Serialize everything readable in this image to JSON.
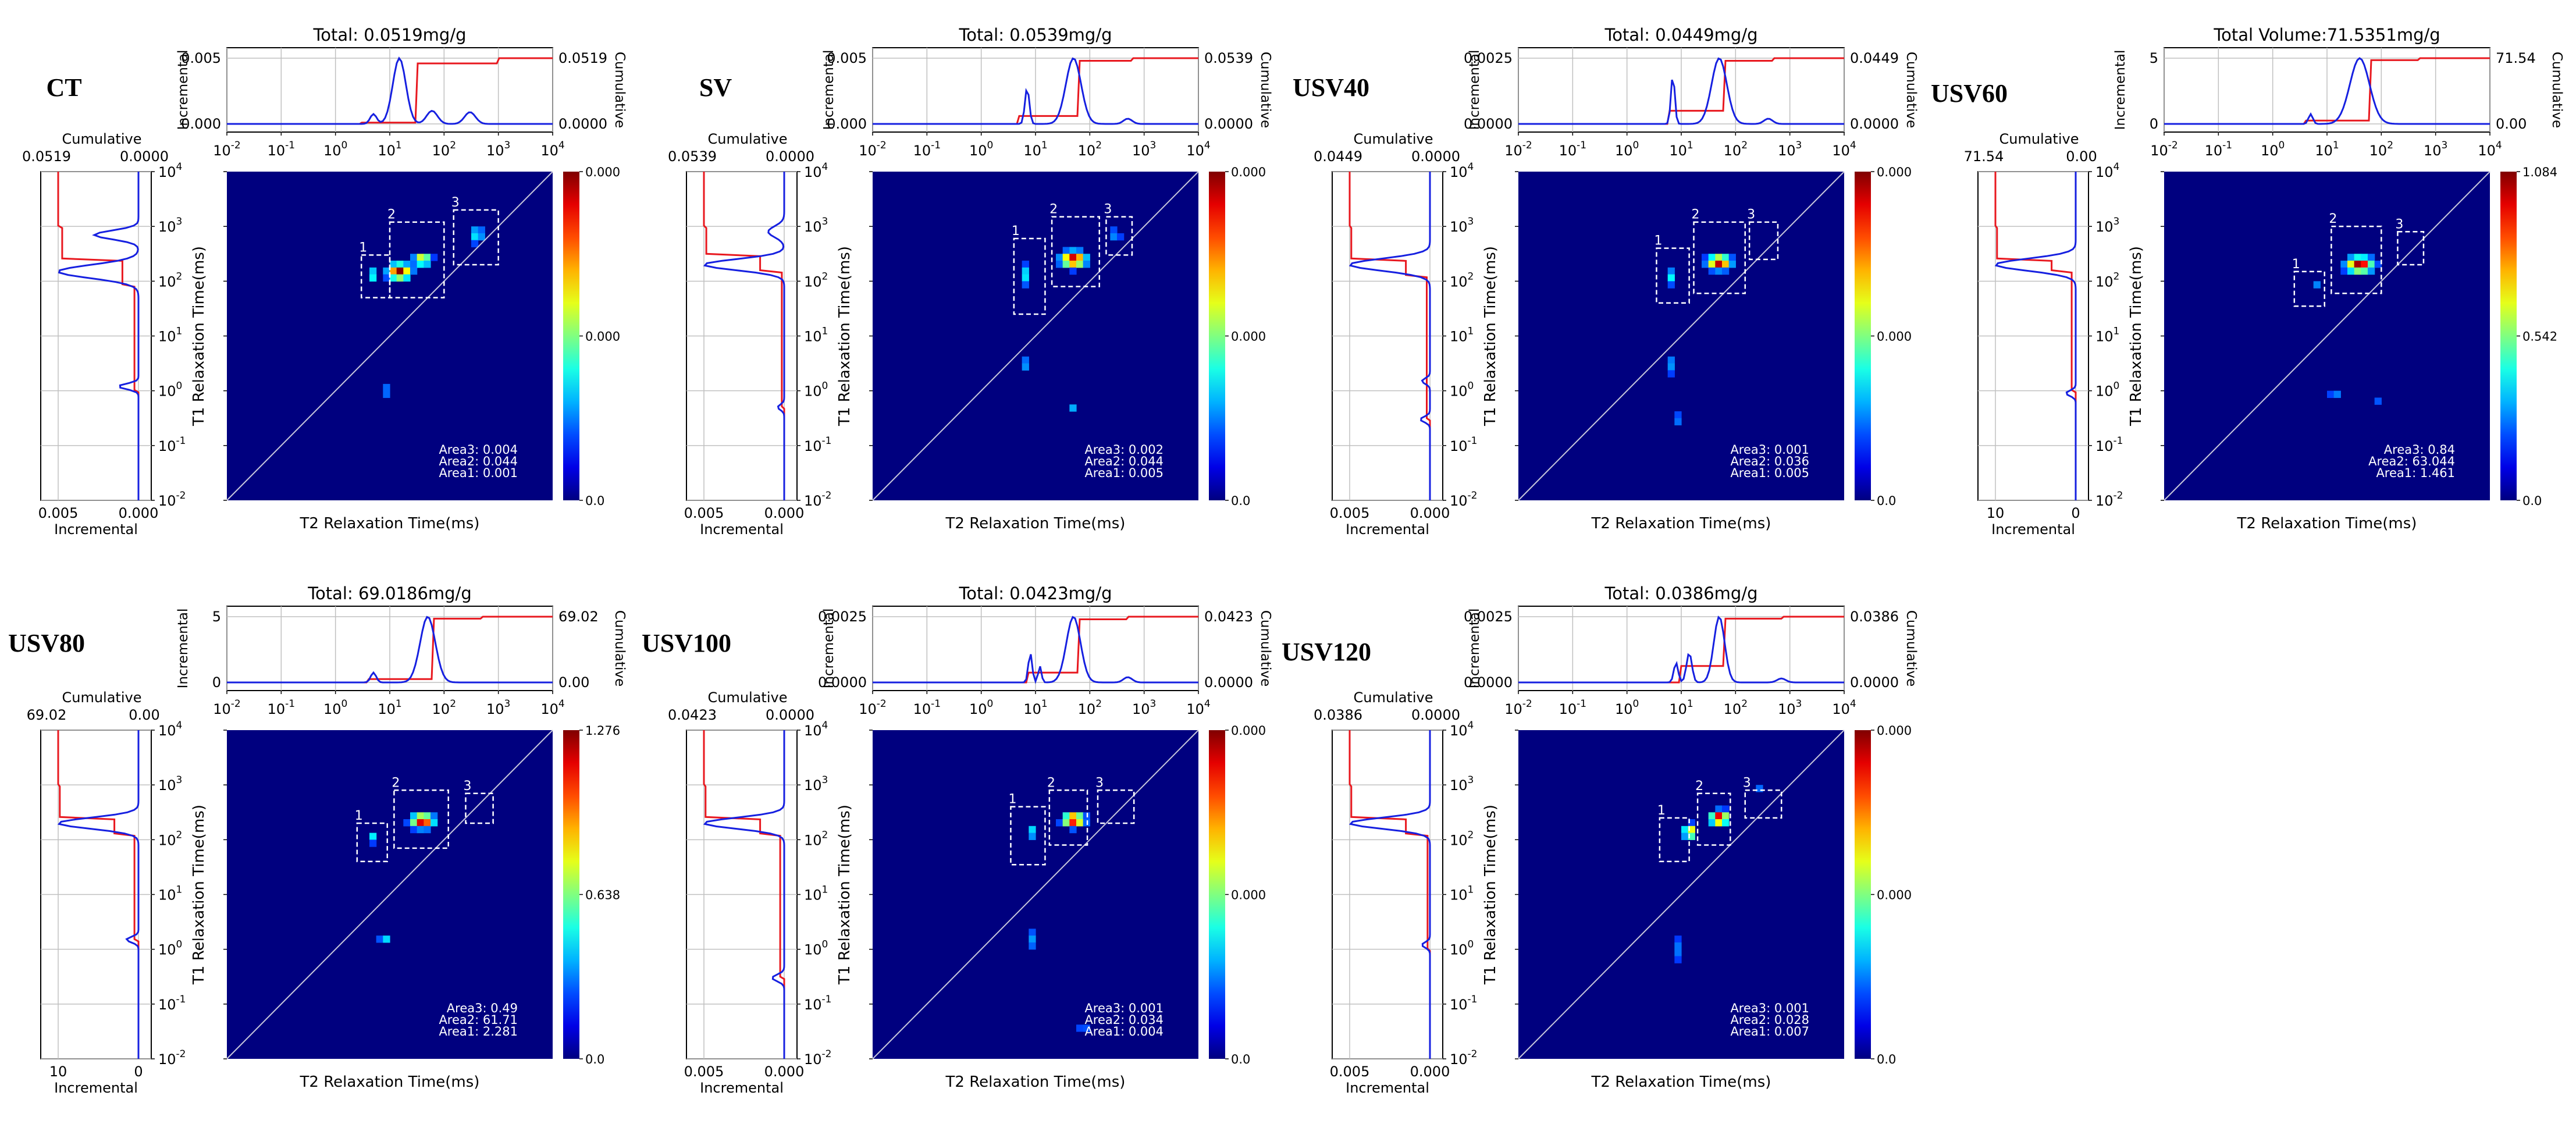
{
  "chart_data": [
    {
      "type": "heatmap",
      "sample": "CT",
      "title": "Total: 0.0519mg/g",
      "incremental_ticks": [
        "0.000",
        "0.005"
      ],
      "cumulative_ticks": [
        "0.0000",
        "0.0519"
      ],
      "left_incremental_ticks": [
        "0.005",
        "0.000"
      ],
      "left_cumulative_ticks": [
        "0.0519",
        "0.0000"
      ],
      "colorbar_ticks": [
        "0.000",
        "0.000",
        "0.0"
      ],
      "areas": [
        "Area3: 0.004",
        "Area2: 0.044",
        "Area1: 0.001"
      ],
      "blobs": [
        {
          "t2": 15,
          "t1": 150,
          "amp": 1.0,
          "s2": 0.13,
          "s1": 0.09
        },
        {
          "t2": 40,
          "t1": 250,
          "amp": 0.65,
          "s2": 0.1,
          "s1": 0.07
        },
        {
          "t2": 5,
          "t1": 130,
          "amp": 0.35,
          "s2": 0.05,
          "s1": 0.08
        },
        {
          "t2": 400,
          "t1": 700,
          "amp": 0.3,
          "s2": 0.08,
          "s1": 0.1
        },
        {
          "t2": 8,
          "t1": 1.0,
          "amp": 0.25,
          "s2": 0.05,
          "s1": 0.06
        }
      ],
      "boxes": [
        {
          "label": "1",
          "t2": [
            3,
            10
          ],
          "t1": [
            50,
            300
          ]
        },
        {
          "label": "2",
          "t2": [
            10,
            100
          ],
          "t1": [
            50,
            1200
          ]
        },
        {
          "label": "3",
          "t2": [
            150,
            1000
          ],
          "t1": [
            200,
            2000
          ]
        }
      ],
      "t2_inc": [
        {
          "t2": 15,
          "v": 1.0,
          "w": 0.12
        },
        {
          "t2": 5,
          "v": 0.15,
          "w": 0.06
        },
        {
          "t2": 60,
          "v": 0.2,
          "w": 0.1
        },
        {
          "t2": 300,
          "v": 0.18,
          "w": 0.1
        }
      ],
      "t2_cum_jumps": [
        [
          3,
          0.02
        ],
        [
          30,
          0.92
        ],
        [
          1000,
          1.0
        ]
      ],
      "t1_inc": [
        {
          "t1": 150,
          "v": 1.0,
          "w": 0.12
        },
        {
          "t1": 700,
          "v": 0.55,
          "w": 0.08
        },
        {
          "t1": 1.2,
          "v": 0.25,
          "w": 0.05
        }
      ],
      "t1_cum_jumps": [
        [
          1,
          0.05
        ],
        [
          80,
          0.2
        ],
        [
          250,
          0.95
        ],
        [
          1000,
          1.0
        ]
      ]
    },
    {
      "type": "heatmap",
      "sample": "SV",
      "title": "Total: 0.0539mg/g",
      "incremental_ticks": [
        "0.000",
        "0.005"
      ],
      "cumulative_ticks": [
        "0.0000",
        "0.0539"
      ],
      "left_incremental_ticks": [
        "0.005",
        "0.000"
      ],
      "left_cumulative_ticks": [
        "0.0539",
        "0.0000"
      ],
      "colorbar_ticks": [
        "0.000",
        "0.000",
        "0.0"
      ],
      "areas": [
        "Area3: 0.002",
        "Area2: 0.044",
        "Area1: 0.005"
      ],
      "blobs": [
        {
          "t2": 50,
          "t1": 250,
          "amp": 1.0,
          "s2": 0.14,
          "s1": 0.09
        },
        {
          "t2": 7,
          "t1": 130,
          "amp": 0.35,
          "s2": 0.05,
          "s1": 0.12
        },
        {
          "t2": 6,
          "t1": 3,
          "amp": 0.25,
          "s2": 0.04,
          "s1": 0.1
        },
        {
          "t2": 50,
          "t1": 0.5,
          "amp": 0.2,
          "s2": 0.06,
          "s1": 0.05
        },
        {
          "t2": 300,
          "t1": 700,
          "amp": 0.2,
          "s2": 0.06,
          "s1": 0.08
        }
      ],
      "boxes": [
        {
          "label": "1",
          "t2": [
            4,
            15
          ],
          "t1": [
            25,
            600
          ]
        },
        {
          "label": "2",
          "t2": [
            20,
            150
          ],
          "t1": [
            80,
            1500
          ]
        },
        {
          "label": "3",
          "t2": [
            200,
            600
          ],
          "t1": [
            300,
            1500
          ]
        }
      ],
      "t2_inc": [
        {
          "t2": 50,
          "v": 1.0,
          "w": 0.14
        },
        {
          "t2": 7,
          "v": 0.55,
          "w": 0.04
        },
        {
          "t2": 500,
          "v": 0.08,
          "w": 0.08
        }
      ],
      "t2_cum_jumps": [
        [
          5,
          0.12
        ],
        [
          60,
          0.96
        ],
        [
          600,
          1.0
        ]
      ],
      "t1_inc": [
        {
          "t1": 200,
          "v": 1.0,
          "w": 0.1
        },
        {
          "t1": 800,
          "v": 0.2,
          "w": 0.1
        },
        {
          "t1": 0.5,
          "v": 0.08,
          "w": 0.05
        }
      ],
      "t1_cum_jumps": [
        [
          0.5,
          0.03
        ],
        [
          150,
          0.3
        ],
        [
          300,
          0.97
        ],
        [
          1000,
          1.0
        ]
      ]
    },
    {
      "type": "heatmap",
      "sample": "USV40",
      "title": "Total: 0.0449mg/g",
      "incremental_ticks": [
        "0.0000",
        "0.0025"
      ],
      "cumulative_ticks": [
        "0.0000",
        "0.0449"
      ],
      "left_incremental_ticks": [
        "0.005",
        "0.000"
      ],
      "left_cumulative_ticks": [
        "0.0449",
        "0.0000"
      ],
      "colorbar_ticks": [
        "0.000",
        "0.000",
        "0.0"
      ],
      "areas": [
        "Area3: 0.001",
        "Area2: 0.036",
        "Area1: 0.005"
      ],
      "blobs": [
        {
          "t2": 50,
          "t1": 220,
          "amp": 1.0,
          "s2": 0.13,
          "s1": 0.08
        },
        {
          "t2": 7,
          "t1": 120,
          "amp": 0.4,
          "s2": 0.04,
          "s1": 0.09
        },
        {
          "t2": 6,
          "t1": 3,
          "amp": 0.25,
          "s2": 0.04,
          "s1": 0.12
        },
        {
          "t2": 8,
          "t1": 0.3,
          "amp": 0.2,
          "s2": 0.04,
          "s1": 0.08
        }
      ],
      "boxes": [
        {
          "label": "1",
          "t2": [
            3.5,
            14
          ],
          "t1": [
            40,
            400
          ]
        },
        {
          "label": "2",
          "t2": [
            17,
            150
          ],
          "t1": [
            60,
            1200
          ]
        },
        {
          "label": "3",
          "t2": [
            180,
            600
          ],
          "t1": [
            250,
            1200
          ]
        }
      ],
      "t2_inc": [
        {
          "t2": 50,
          "v": 1.0,
          "w": 0.14
        },
        {
          "t2": 7,
          "v": 0.75,
          "w": 0.035
        },
        {
          "t2": 400,
          "v": 0.08,
          "w": 0.08
        }
      ],
      "t2_cum_jumps": [
        [
          6,
          0.2
        ],
        [
          60,
          0.96
        ],
        [
          500,
          1.0
        ]
      ],
      "t1_inc": [
        {
          "t1": 200,
          "v": 1.0,
          "w": 0.11
        },
        {
          "t1": 0.3,
          "v": 0.12,
          "w": 0.05
        },
        {
          "t1": 1.5,
          "v": 0.1,
          "w": 0.05
        }
      ],
      "t1_cum_jumps": [
        [
          0.3,
          0.04
        ],
        [
          120,
          0.3
        ],
        [
          250,
          0.98
        ],
        [
          1000,
          1.0
        ]
      ]
    },
    {
      "type": "heatmap",
      "sample": "USV60",
      "title": "Total Volume:71.5351mg/g",
      "incremental_ticks": [
        "0",
        "5"
      ],
      "cumulative_ticks": [
        "0.00",
        "71.54"
      ],
      "left_incremental_ticks": [
        "10",
        "0"
      ],
      "left_cumulative_ticks": [
        "71.54",
        "0.00"
      ],
      "colorbar_ticks": [
        "1.084",
        "0.542",
        "0.0"
      ],
      "areas": [
        "Area3: 0.84",
        "Area2: 63.044",
        "Area1: 1.461"
      ],
      "blobs": [
        {
          "t2": 40,
          "t1": 200,
          "amp": 1.0,
          "s2": 0.15,
          "s1": 0.09
        },
        {
          "t2": 6,
          "t1": 80,
          "amp": 0.25,
          "s2": 0.04,
          "s1": 0.06
        },
        {
          "t2": 15,
          "t1": 0.8,
          "amp": 0.2,
          "s2": 0.1,
          "s1": 0.04
        },
        {
          "t2": 80,
          "t1": 0.6,
          "amp": 0.15,
          "s2": 0.08,
          "s1": 0.04
        }
      ],
      "boxes": [
        {
          "label": "1",
          "t2": [
            2.5,
            9
          ],
          "t1": [
            35,
            150
          ]
        },
        {
          "label": "2",
          "t2": [
            12,
            100
          ],
          "t1": [
            60,
            1000
          ]
        },
        {
          "label": "3",
          "t2": [
            200,
            600
          ],
          "t1": [
            200,
            800
          ]
        }
      ],
      "t2_inc": [
        {
          "t2": 40,
          "v": 1.0,
          "w": 0.18
        },
        {
          "t2": 5,
          "v": 0.15,
          "w": 0.04
        }
      ],
      "t2_cum_jumps": [
        [
          4,
          0.05
        ],
        [
          60,
          0.97
        ],
        [
          500,
          1.0
        ]
      ],
      "t1_inc": [
        {
          "t1": 200,
          "v": 1.0,
          "w": 0.11
        },
        {
          "t1": 0.9,
          "v": 0.12,
          "w": 0.05
        }
      ],
      "t1_cum_jumps": [
        [
          1,
          0.05
        ],
        [
          150,
          0.3
        ],
        [
          250,
          0.98
        ],
        [
          1000,
          1.0
        ]
      ]
    },
    {
      "type": "heatmap",
      "sample": "USV80",
      "title": "Total: 69.0186mg/g",
      "incremental_ticks": [
        "0",
        "5"
      ],
      "cumulative_ticks": [
        "0.00",
        "69.02"
      ],
      "left_incremental_ticks": [
        "10",
        "0"
      ],
      "left_cumulative_ticks": [
        "69.02",
        "0.00"
      ],
      "colorbar_ticks": [
        "1.276",
        "0.638",
        "0.0"
      ],
      "areas": [
        "Area3: 0.49",
        "Area2: 61.71",
        "Area1: 2.281"
      ],
      "blobs": [
        {
          "t2": 40,
          "t1": 220,
          "amp": 1.0,
          "s2": 0.13,
          "s1": 0.08
        },
        {
          "t2": 5,
          "t1": 110,
          "amp": 0.3,
          "s2": 0.04,
          "s1": 0.06
        },
        {
          "t2": 8,
          "t1": 1.5,
          "amp": 0.3,
          "s2": 0.06,
          "s1": 0.04
        },
        {
          "t2": 30,
          "t1": 1.3,
          "amp": 0.15,
          "s2": 0.04,
          "s1": 0.04
        }
      ],
      "boxes": [
        {
          "label": "1",
          "t2": [
            2.5,
            9
          ],
          "t1": [
            40,
            200
          ]
        },
        {
          "label": "2",
          "t2": [
            12,
            120
          ],
          "t1": [
            70,
            800
          ]
        },
        {
          "label": "3",
          "t2": [
            250,
            800
          ],
          "t1": [
            200,
            700
          ]
        }
      ],
      "t2_inc": [
        {
          "t2": 50,
          "v": 1.0,
          "w": 0.14
        },
        {
          "t2": 5,
          "v": 0.15,
          "w": 0.05
        }
      ],
      "t2_cum_jumps": [
        [
          4,
          0.05
        ],
        [
          60,
          0.97
        ],
        [
          500,
          1.0
        ]
      ],
      "t1_inc": [
        {
          "t1": 200,
          "v": 1.0,
          "w": 0.1
        },
        {
          "t1": 1.5,
          "v": 0.15,
          "w": 0.05
        }
      ],
      "t1_cum_jumps": [
        [
          1.5,
          0.05
        ],
        [
          120,
          0.3
        ],
        [
          250,
          0.98
        ],
        [
          1000,
          1.0
        ]
      ]
    },
    {
      "type": "heatmap",
      "sample": "USV100",
      "title": "Total: 0.0423mg/g",
      "incremental_ticks": [
        "0.0000",
        "0.0025"
      ],
      "cumulative_ticks": [
        "0.0000",
        "0.0423"
      ],
      "left_incremental_ticks": [
        "0.005",
        "0.000"
      ],
      "left_cumulative_ticks": [
        "0.0423",
        "0.0000"
      ],
      "colorbar_ticks": [
        "0.000",
        "0.000",
        "0.0"
      ],
      "areas": [
        "Area3: 0.001",
        "Area2: 0.034",
        "Area1: 0.004"
      ],
      "blobs": [
        {
          "t2": 50,
          "t1": 230,
          "amp": 1.0,
          "s2": 0.12,
          "s1": 0.08
        },
        {
          "t2": 8,
          "t1": 140,
          "amp": 0.4,
          "s2": 0.04,
          "s1": 0.08
        },
        {
          "t2": 8,
          "t1": 1.5,
          "amp": 0.25,
          "s2": 0.04,
          "s1": 0.12
        },
        {
          "t2": 80,
          "t1": 0.04,
          "amp": 0.15,
          "s2": 0.15,
          "s1": 0.04
        }
      ],
      "boxes": [
        {
          "label": "1",
          "t2": [
            3.5,
            15
          ],
          "t1": [
            35,
            400
          ]
        },
        {
          "label": "2",
          "t2": [
            18,
            90
          ],
          "t1": [
            80,
            800
          ]
        },
        {
          "label": "3",
          "t2": [
            140,
            650
          ],
          "t1": [
            200,
            800
          ]
        }
      ],
      "t2_inc": [
        {
          "t2": 50,
          "v": 1.0,
          "w": 0.13
        },
        {
          "t2": 8,
          "v": 0.45,
          "w": 0.035
        },
        {
          "t2": 12,
          "v": 0.25,
          "w": 0.03
        },
        {
          "t2": 500,
          "v": 0.08,
          "w": 0.08
        }
      ],
      "t2_cum_jumps": [
        [
          7,
          0.15
        ],
        [
          60,
          0.96
        ],
        [
          500,
          1.0
        ]
      ],
      "t1_inc": [
        {
          "t1": 200,
          "v": 1.0,
          "w": 0.1
        },
        {
          "t1": 0.3,
          "v": 0.15,
          "w": 0.06
        }
      ],
      "t1_cum_jumps": [
        [
          0.3,
          0.05
        ],
        [
          120,
          0.3
        ],
        [
          250,
          0.98
        ],
        [
          1000,
          1.0
        ]
      ]
    },
    {
      "type": "heatmap",
      "sample": "USV120",
      "title": "Total: 0.0386mg/g",
      "incremental_ticks": [
        "0.0000",
        "0.0025"
      ],
      "cumulative_ticks": [
        "0.0000",
        "0.0386"
      ],
      "left_incremental_ticks": [
        "0.005",
        "0.000"
      ],
      "left_cumulative_ticks": [
        "0.0386",
        "0.0000"
      ],
      "colorbar_ticks": [
        "0.000",
        "0.000",
        "0.0"
      ],
      "areas": [
        "Area3: 0.001",
        "Area2: 0.028",
        "Area1: 0.007"
      ],
      "blobs": [
        {
          "t2": 50,
          "t1": 250,
          "amp": 1.0,
          "s2": 0.1,
          "s1": 0.08
        },
        {
          "t2": 14,
          "t1": 140,
          "amp": 0.8,
          "s2": 0.06,
          "s1": 0.08
        },
        {
          "t2": 8,
          "t1": 1.0,
          "amp": 0.2,
          "s2": 0.04,
          "s1": 0.15
        },
        {
          "t2": 300,
          "t1": 800,
          "amp": 0.2,
          "s2": 0.05,
          "s1": 0.05
        }
      ],
      "boxes": [
        {
          "label": "1",
          "t2": [
            4,
            14
          ],
          "t1": [
            40,
            250
          ]
        },
        {
          "label": "2",
          "t2": [
            20,
            80
          ],
          "t1": [
            80,
            700
          ]
        },
        {
          "label": "3",
          "t2": [
            150,
            700
          ],
          "t1": [
            250,
            800
          ]
        }
      ],
      "t2_inc": [
        {
          "t2": 50,
          "v": 1.0,
          "w": 0.1
        },
        {
          "t2": 14,
          "v": 0.45,
          "w": 0.05
        },
        {
          "t2": 8,
          "v": 0.3,
          "w": 0.04
        },
        {
          "t2": 700,
          "v": 0.06,
          "w": 0.08
        }
      ],
      "t2_cum_jumps": [
        [
          10,
          0.25
        ],
        [
          60,
          0.97
        ],
        [
          700,
          1.0
        ]
      ],
      "t1_inc": [
        {
          "t1": 200,
          "v": 1.0,
          "w": 0.1
        },
        {
          "t1": 1.2,
          "v": 0.1,
          "w": 0.05
        }
      ],
      "t1_cum_jumps": [
        [
          1,
          0.03
        ],
        [
          120,
          0.3
        ],
        [
          250,
          0.98
        ],
        [
          1000,
          1.0
        ]
      ]
    }
  ],
  "common": {
    "incremental_label": "Incremental",
    "cumulative_label": "Cumulative",
    "t1_axis_label": "T1 Relaxation Time(ms)",
    "t2_axis_label": "T2 Relaxation Time(ms)",
    "log_ticks": [
      "-2",
      "-1",
      "0",
      "1",
      "2",
      "3",
      "4"
    ],
    "log_base": "10",
    "t2_range": [
      0.01,
      10000
    ],
    "t1_range": [
      0.01,
      10000
    ]
  }
}
